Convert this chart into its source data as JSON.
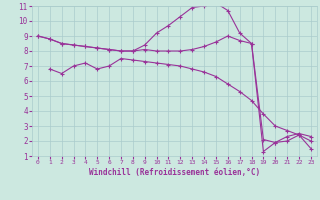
{
  "xlabel": "Windchill (Refroidissement éolien,°C)",
  "bg_color": "#cce8e0",
  "line_color": "#993399",
  "grid_color": "#aacccc",
  "axis_label_color": "#993399",
  "tick_color": "#993399",
  "xlim": [
    -0.5,
    23.5
  ],
  "ylim": [
    1,
    11
  ],
  "xticks": [
    0,
    1,
    2,
    3,
    4,
    5,
    6,
    7,
    8,
    9,
    10,
    11,
    12,
    13,
    14,
    15,
    16,
    17,
    18,
    19,
    20,
    21,
    22,
    23
  ],
  "yticks": [
    1,
    2,
    3,
    4,
    5,
    6,
    7,
    8,
    9,
    10,
    11
  ],
  "line1_x": [
    0,
    1,
    2,
    3,
    4,
    5,
    6,
    7,
    8,
    9,
    10,
    11,
    12,
    13,
    14,
    15,
    16,
    17,
    18,
    19,
    20,
    21,
    22,
    23
  ],
  "line1_y": [
    9.0,
    8.8,
    8.5,
    8.4,
    8.3,
    8.2,
    8.1,
    8.0,
    8.0,
    8.1,
    8.0,
    8.0,
    8.0,
    8.1,
    8.3,
    8.6,
    9.0,
    8.7,
    8.5,
    2.1,
    1.9,
    2.3,
    2.5,
    2.3
  ],
  "line2_x": [
    0,
    1,
    2,
    3,
    4,
    5,
    6,
    7,
    8,
    9,
    10,
    11,
    12,
    13,
    14,
    15,
    16,
    17,
    18,
    19,
    20,
    21,
    22,
    23
  ],
  "line2_y": [
    9.0,
    8.8,
    8.5,
    8.4,
    8.3,
    8.2,
    8.1,
    8.0,
    8.0,
    8.4,
    9.2,
    9.7,
    10.3,
    10.9,
    11.0,
    11.2,
    10.7,
    9.2,
    8.5,
    1.3,
    1.9,
    2.0,
    2.4,
    1.5
  ],
  "line3_x": [
    1,
    2,
    3,
    4,
    5,
    6,
    7,
    8,
    9,
    10,
    11,
    12,
    13,
    14,
    15,
    16,
    17,
    18,
    19,
    20,
    21,
    22,
    23
  ],
  "line3_y": [
    6.8,
    6.5,
    7.0,
    7.2,
    6.8,
    7.0,
    7.5,
    7.4,
    7.3,
    7.2,
    7.1,
    7.0,
    6.8,
    6.6,
    6.3,
    5.8,
    5.3,
    4.7,
    3.8,
    3.0,
    2.7,
    2.4,
    2.0
  ]
}
